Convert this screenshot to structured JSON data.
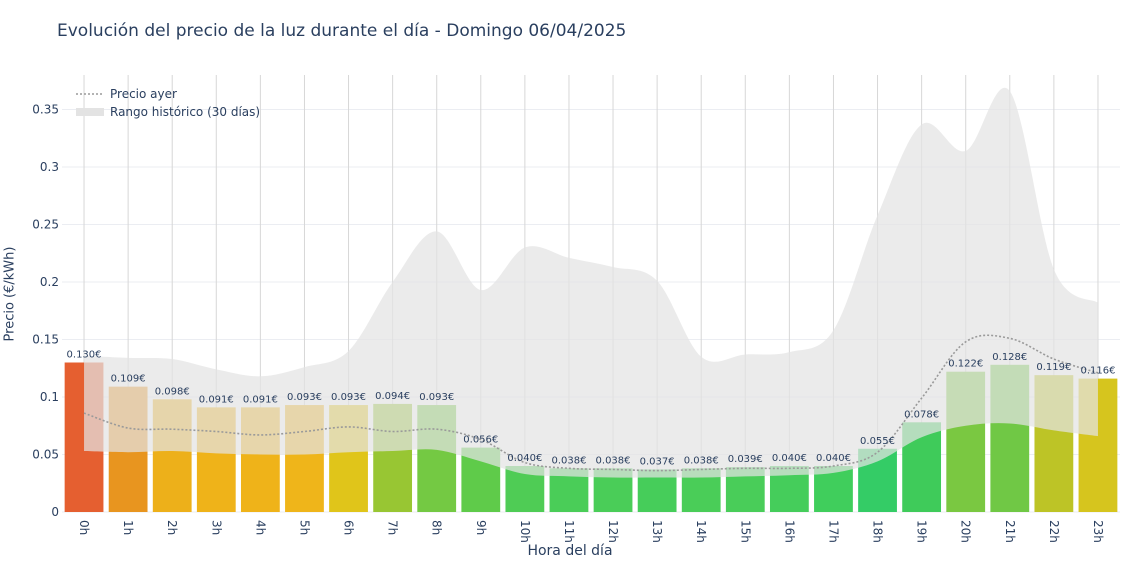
{
  "chart_data": {
    "type": "bar",
    "title": "Evolución del precio de la luz durante el día - Domingo 06/04/2025",
    "xlabel": "Hora del día",
    "ylabel": "Precio (€/kWh)",
    "ylim": [
      0,
      0.38
    ],
    "yticks": [
      0,
      0.05,
      0.1,
      0.15,
      0.2,
      0.25,
      0.3,
      0.35
    ],
    "ytick_labels": [
      "0",
      "0.05",
      "0.1",
      "0.15",
      "0.2",
      "0.25",
      "0.3",
      "0.35"
    ],
    "grid": true,
    "legend_position": "top-left",
    "categories": [
      "0h",
      "1h",
      "2h",
      "3h",
      "4h",
      "5h",
      "6h",
      "7h",
      "8h",
      "9h",
      "10h",
      "11h",
      "12h",
      "13h",
      "14h",
      "15h",
      "16h",
      "17h",
      "18h",
      "19h",
      "20h",
      "21h",
      "22h",
      "23h"
    ],
    "values": [
      0.13,
      0.109,
      0.098,
      0.091,
      0.091,
      0.093,
      0.093,
      0.094,
      0.093,
      0.056,
      0.04,
      0.038,
      0.038,
      0.037,
      0.038,
      0.039,
      0.04,
      0.04,
      0.055,
      0.078,
      0.122,
      0.128,
      0.119,
      0.116
    ],
    "value_labels": [
      "0.130€",
      "0.109€",
      "0.098€",
      "0.091€",
      "0.091€",
      "0.093€",
      "0.093€",
      "0.094€",
      "0.093€",
      "0.056€",
      "0.040€",
      "0.038€",
      "0.038€",
      "0.037€",
      "0.038€",
      "0.039€",
      "0.040€",
      "0.040€",
      "0.055€",
      "0.078€",
      "0.122€",
      "0.128€",
      "0.119€",
      "0.116€"
    ],
    "bar_colors": [
      "#e55f30",
      "#e8951f",
      "#edb01a",
      "#efb319",
      "#efb319",
      "#efb51a",
      "#e0c51a",
      "#98c633",
      "#74c943",
      "#5fcb4a",
      "#4fcc55",
      "#4acd58",
      "#4acd58",
      "#46cd5a",
      "#4acd58",
      "#49cd59",
      "#45cd5b",
      "#40ce5c",
      "#34cc66",
      "#3fcb5a",
      "#7ac841",
      "#70c845",
      "#bdc426",
      "#d6c51e"
    ],
    "series": [
      {
        "name": "Precio ayer",
        "style": "dotted",
        "color": "#9a9a9a",
        "values": [
          0.086,
          0.073,
          0.072,
          0.07,
          0.067,
          0.07,
          0.074,
          0.07,
          0.072,
          0.063,
          0.043,
          0.038,
          0.037,
          0.036,
          0.037,
          0.038,
          0.038,
          0.04,
          0.052,
          0.099,
          0.148,
          0.151,
          0.133,
          0.121
        ]
      },
      {
        "name": "Rango histórico (30 días)",
        "type": "area",
        "color": "#e3e3e3",
        "upper": [
          0.136,
          0.134,
          0.133,
          0.124,
          0.118,
          0.126,
          0.14,
          0.2,
          0.244,
          0.193,
          0.23,
          0.221,
          0.213,
          0.201,
          0.135,
          0.137,
          0.139,
          0.158,
          0.258,
          0.337,
          0.314,
          0.366,
          0.211,
          0.182
        ],
        "lower": [
          0.053,
          0.052,
          0.053,
          0.051,
          0.05,
          0.05,
          0.052,
          0.053,
          0.054,
          0.044,
          0.033,
          0.031,
          0.03,
          0.03,
          0.03,
          0.031,
          0.032,
          0.034,
          0.044,
          0.065,
          0.075,
          0.077,
          0.071,
          0.066
        ]
      }
    ]
  }
}
